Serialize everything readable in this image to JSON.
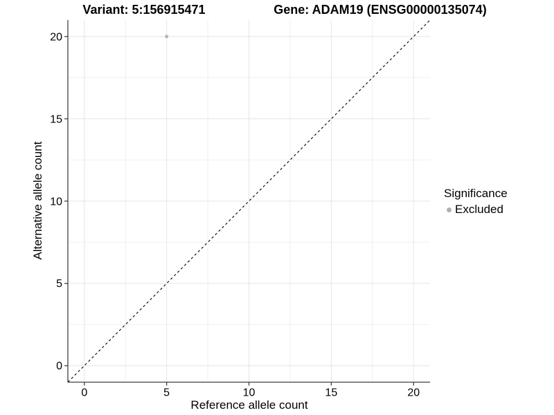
{
  "header": {
    "variant_title": "Variant: 5:156915471",
    "gene_title": "Gene: ADAM19 (ENSG00000135074)"
  },
  "chart_data": {
    "type": "scatter",
    "title_left": "Variant: 5:156915471",
    "title_right": "Gene: ADAM19 (ENSG00000135074)",
    "xlabel": "Reference allele count",
    "ylabel": "Alternative allele count",
    "xlim": [
      -1,
      21
    ],
    "ylim": [
      -1,
      21
    ],
    "x_ticks": [
      0,
      5,
      10,
      15,
      20
    ],
    "y_ticks": [
      0,
      5,
      10,
      15,
      20
    ],
    "x_minor": [
      2.5,
      7.5,
      12.5,
      17.5
    ],
    "y_minor": [
      2.5,
      7.5,
      12.5,
      17.5
    ],
    "grid": true,
    "identity_line": {
      "style": "dashed",
      "from": -1,
      "to": 21,
      "color": "#000000"
    },
    "series": [
      {
        "name": "Excluded",
        "color": "#b5b5b5",
        "points": [
          {
            "x": 5,
            "y": 20
          }
        ]
      }
    ],
    "legend": {
      "title": "Significance",
      "position": "right",
      "items": [
        {
          "label": "Excluded",
          "color": "#b0b0b0"
        }
      ]
    },
    "style": {
      "background": "#ffffff",
      "grid_major_color": "#e5e5e5",
      "grid_minor_color": "#f0f0f0",
      "axis_line_color": "#404040",
      "tick_color": "#404040",
      "text_color": "#000000"
    }
  }
}
